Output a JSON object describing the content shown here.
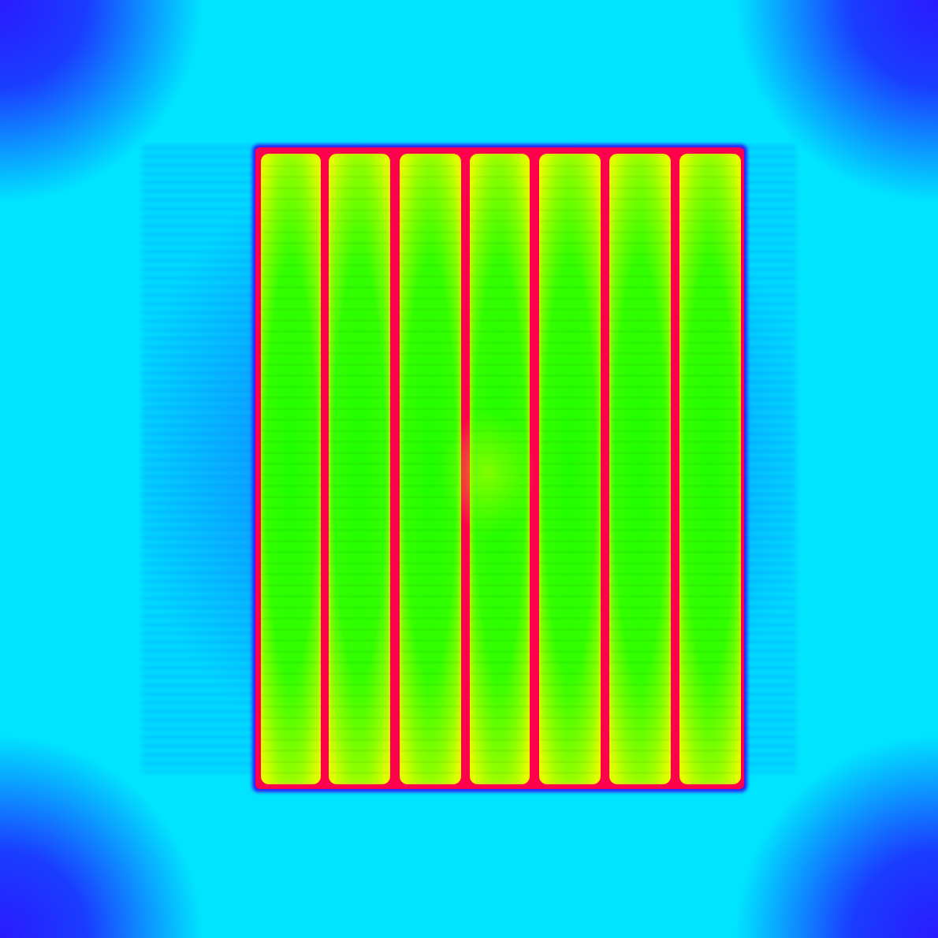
{
  "image": {
    "kind": "false-color thermal map",
    "strip_count": 7,
    "colors": {
      "background": "#00e4ff",
      "corner": "#2a1aff",
      "halo": "#0aa8ff",
      "border": "#ff004c",
      "edge_glow": "#e3ff00",
      "core": "#1fff00"
    }
  }
}
